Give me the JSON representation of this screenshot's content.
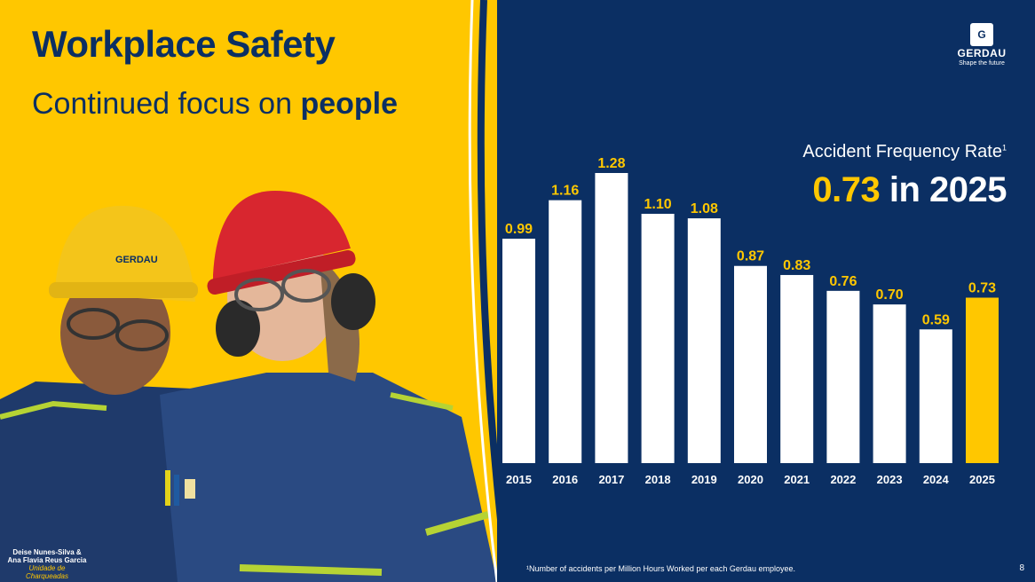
{
  "header": {
    "title": "Workplace Safety",
    "subtitle_prefix": "Continued focus on ",
    "subtitle_emphasis": "people"
  },
  "logo": {
    "mark": "G",
    "name": "GERDAU",
    "tagline": "Shape the future"
  },
  "photo": {
    "helmet_logo_text": "GERDAU",
    "caption_names": "Deise Nunes-Silva & Ana Flavia Reus Garcia",
    "caption_location": "Unidade de Charqueadas"
  },
  "kpi": {
    "label": "Accident Frequency Rate",
    "footnote_marker": "1",
    "value": "0.73",
    "value_suffix": " in 2025"
  },
  "chart_data": {
    "type": "bar",
    "categories": [
      "2015",
      "2016",
      "2017",
      "2018",
      "2019",
      "2020",
      "2021",
      "2022",
      "2023",
      "2024",
      "2025"
    ],
    "values": [
      0.99,
      1.16,
      1.28,
      1.1,
      1.08,
      0.87,
      0.83,
      0.76,
      0.7,
      0.59,
      0.73
    ],
    "data_labels": [
      "0.99",
      "1.16",
      "1.28",
      "1.10",
      "1.08",
      "0.87",
      "0.83",
      "0.76",
      "0.70",
      "0.59",
      "0.73"
    ],
    "highlight_index": 10,
    "ylim": [
      0,
      1.28
    ],
    "grid": false,
    "colors": {
      "bar": "#ffffff",
      "highlight": "#ffc700",
      "label": "#ffc700",
      "tick": "#ffffff"
    }
  },
  "footer": {
    "footnote": "¹Number of accidents per Million Hours Worked per each Gerdau employee.",
    "page_number": "8"
  },
  "colors": {
    "navy": "#0b2f63",
    "yellow": "#ffc700",
    "white": "#ffffff"
  }
}
